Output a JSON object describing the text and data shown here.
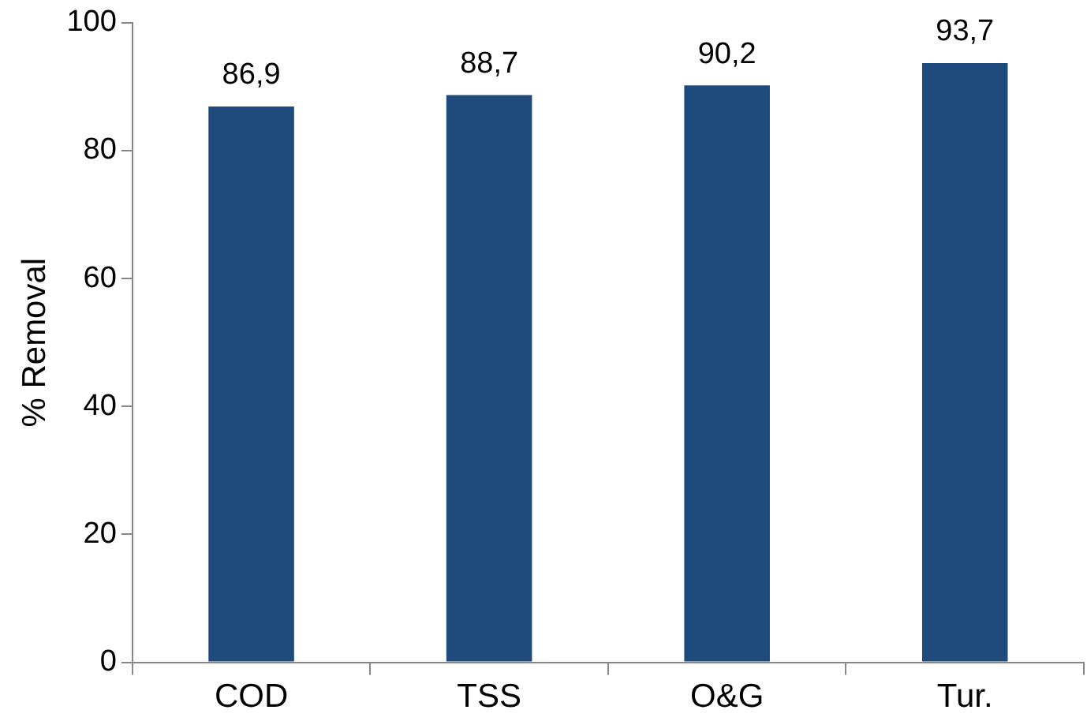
{
  "chart_data": {
    "type": "bar",
    "ylabel": "% Removal",
    "categories": [
      "COD",
      "TSS",
      "O&G",
      "Tur."
    ],
    "values": [
      86.9,
      88.7,
      90.2,
      93.7
    ],
    "value_labels": [
      "86,9",
      "88,7",
      "90,2",
      "93,7"
    ],
    "color": "#1f4a7c",
    "ylim": [
      0,
      100
    ],
    "yticks": [
      0,
      20,
      40,
      60,
      80,
      100
    ],
    "grid": false,
    "legend": false
  }
}
